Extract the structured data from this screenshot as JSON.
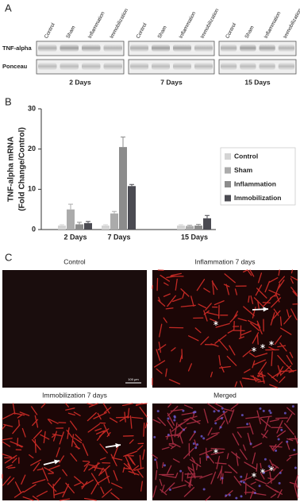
{
  "panel_a": {
    "letter": "A",
    "lanes": [
      "Control",
      "Sham",
      "Inflammation",
      "Immobilization"
    ],
    "rows": [
      "TNF-alpha",
      "Ponceau"
    ],
    "groups": [
      "2 Days",
      "7 Days",
      "15 Days"
    ]
  },
  "chart_data": {
    "type": "bar",
    "letter": "B",
    "ylabel": [
      "TNF-alpha mRNA",
      "(Fold Change/Control)"
    ],
    "categories": [
      "2 Days",
      "7 Days",
      "15 Days"
    ],
    "series": [
      {
        "name": "Control",
        "color": "#d4d4d4",
        "values": [
          1.0,
          1.0,
          1.0
        ],
        "errors": [
          0.2,
          0.2,
          0.2
        ]
      },
      {
        "name": "Sham",
        "color": "#ababab",
        "values": [
          5.0,
          4.0,
          0.9
        ],
        "errors": [
          1.3,
          0.5,
          0.2
        ]
      },
      {
        "name": "Inflammation",
        "color": "#8c8c8c",
        "values": [
          1.3,
          20.5,
          1.0
        ],
        "errors": [
          0.5,
          2.5,
          0.3
        ]
      },
      {
        "name": "Immobilization",
        "color": "#4b4b52",
        "values": [
          1.6,
          10.8,
          2.8
        ],
        "errors": [
          0.4,
          0.4,
          0.7
        ]
      }
    ],
    "ylim": [
      0,
      30
    ],
    "yticks": [
      0,
      10,
      20,
      30
    ],
    "legend": "right"
  },
  "panel_c": {
    "letter": "C",
    "titles": [
      "Control",
      "Inflammation 7 days",
      "Immobilization 7 days",
      "Merged"
    ],
    "scale_bar": "100 μm"
  }
}
